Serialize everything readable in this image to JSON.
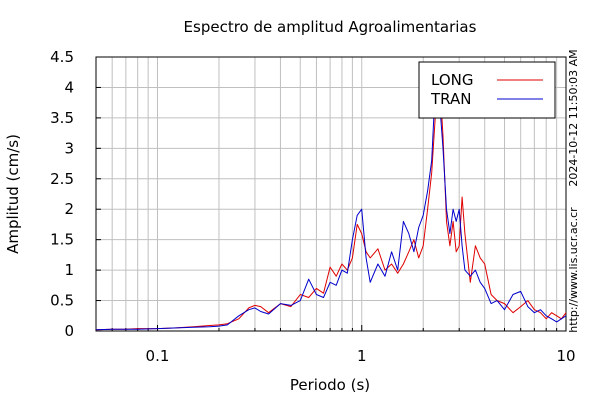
{
  "chart_data": {
    "type": "line",
    "title": "Espectro de amplitud Agroalimentarias",
    "xlabel": "Periodo (s)",
    "ylabel": "Amplitud (cm/s)",
    "xscale": "log",
    "xlim": [
      0.05,
      10
    ],
    "ylim": [
      0,
      4.5
    ],
    "xticks": [
      {
        "value": 0.1,
        "label": "0.1"
      },
      {
        "value": 1,
        "label": "1"
      },
      {
        "value": 10,
        "label": "10"
      }
    ],
    "yticks": [
      {
        "value": 0,
        "label": "0"
      },
      {
        "value": 0.5,
        "label": "0.5"
      },
      {
        "value": 1,
        "label": "1"
      },
      {
        "value": 1.5,
        "label": "1.5"
      },
      {
        "value": 2,
        "label": "2"
      },
      {
        "value": 2.5,
        "label": "2.5"
      },
      {
        "value": 3,
        "label": "3"
      },
      {
        "value": 3.5,
        "label": "3.5"
      },
      {
        "value": 4,
        "label": "4"
      },
      {
        "value": 4.5,
        "label": "4.5"
      }
    ],
    "grid": true,
    "legend_position": "top-right",
    "timestamp": "2024-10-12 11:50:03 AM",
    "website": "http://www.lis.ucr.ac.cr",
    "series": [
      {
        "name": "LONG",
        "color": "#e00000",
        "x": [
          0.05,
          0.06,
          0.07,
          0.08,
          0.1,
          0.12,
          0.15,
          0.18,
          0.2,
          0.22,
          0.25,
          0.28,
          0.3,
          0.32,
          0.35,
          0.4,
          0.45,
          0.5,
          0.55,
          0.6,
          0.65,
          0.7,
          0.75,
          0.8,
          0.85,
          0.9,
          0.95,
          1.0,
          1.05,
          1.1,
          1.2,
          1.3,
          1.4,
          1.5,
          1.6,
          1.7,
          1.8,
          1.9,
          2.0,
          2.1,
          2.2,
          2.3,
          2.4,
          2.5,
          2.6,
          2.7,
          2.8,
          2.9,
          3.0,
          3.1,
          3.2,
          3.4,
          3.6,
          3.8,
          4.0,
          4.3,
          4.6,
          5.0,
          5.5,
          6.0,
          6.5,
          7.0,
          7.5,
          8.0,
          8.5,
          9.0,
          9.5,
          10.0
        ],
        "y": [
          0.02,
          0.03,
          0.03,
          0.04,
          0.04,
          0.05,
          0.07,
          0.09,
          0.1,
          0.12,
          0.2,
          0.38,
          0.42,
          0.4,
          0.3,
          0.45,
          0.4,
          0.6,
          0.55,
          0.7,
          0.62,
          1.05,
          0.9,
          1.1,
          1.0,
          1.2,
          1.75,
          1.6,
          1.3,
          1.2,
          1.35,
          1.0,
          1.1,
          0.95,
          1.1,
          1.3,
          1.5,
          1.2,
          1.4,
          2.0,
          2.6,
          3.6,
          4.2,
          3.2,
          1.8,
          1.4,
          1.8,
          1.3,
          1.4,
          2.2,
          1.6,
          0.8,
          1.4,
          1.2,
          1.1,
          0.6,
          0.5,
          0.45,
          0.3,
          0.4,
          0.5,
          0.35,
          0.3,
          0.2,
          0.3,
          0.25,
          0.2,
          0.3
        ]
      },
      {
        "name": "TRAN",
        "color": "#0000cc",
        "x": [
          0.05,
          0.06,
          0.07,
          0.08,
          0.1,
          0.12,
          0.15,
          0.18,
          0.2,
          0.22,
          0.25,
          0.28,
          0.3,
          0.32,
          0.35,
          0.4,
          0.45,
          0.5,
          0.55,
          0.6,
          0.65,
          0.7,
          0.75,
          0.8,
          0.85,
          0.9,
          0.95,
          1.0,
          1.05,
          1.1,
          1.2,
          1.3,
          1.4,
          1.5,
          1.6,
          1.7,
          1.8,
          1.9,
          2.0,
          2.1,
          2.2,
          2.3,
          2.4,
          2.5,
          2.6,
          2.7,
          2.8,
          2.9,
          3.0,
          3.1,
          3.2,
          3.4,
          3.6,
          3.8,
          4.0,
          4.3,
          4.6,
          5.0,
          5.5,
          6.0,
          6.5,
          7.0,
          7.5,
          8.0,
          8.5,
          9.0,
          9.5,
          10.0
        ],
        "y": [
          0.02,
          0.03,
          0.03,
          0.03,
          0.04,
          0.05,
          0.06,
          0.07,
          0.08,
          0.1,
          0.25,
          0.35,
          0.38,
          0.32,
          0.28,
          0.45,
          0.42,
          0.5,
          0.85,
          0.6,
          0.55,
          0.8,
          0.75,
          1.0,
          0.95,
          1.5,
          1.9,
          2.0,
          1.2,
          0.8,
          1.1,
          0.9,
          1.3,
          1.0,
          1.8,
          1.6,
          1.3,
          1.7,
          1.9,
          2.3,
          2.8,
          4.1,
          3.8,
          3.0,
          2.0,
          1.6,
          2.0,
          1.8,
          2.0,
          1.4,
          1.0,
          0.9,
          1.0,
          0.8,
          0.7,
          0.45,
          0.5,
          0.35,
          0.6,
          0.65,
          0.4,
          0.3,
          0.35,
          0.25,
          0.2,
          0.15,
          0.2,
          0.25
        ]
      }
    ]
  }
}
